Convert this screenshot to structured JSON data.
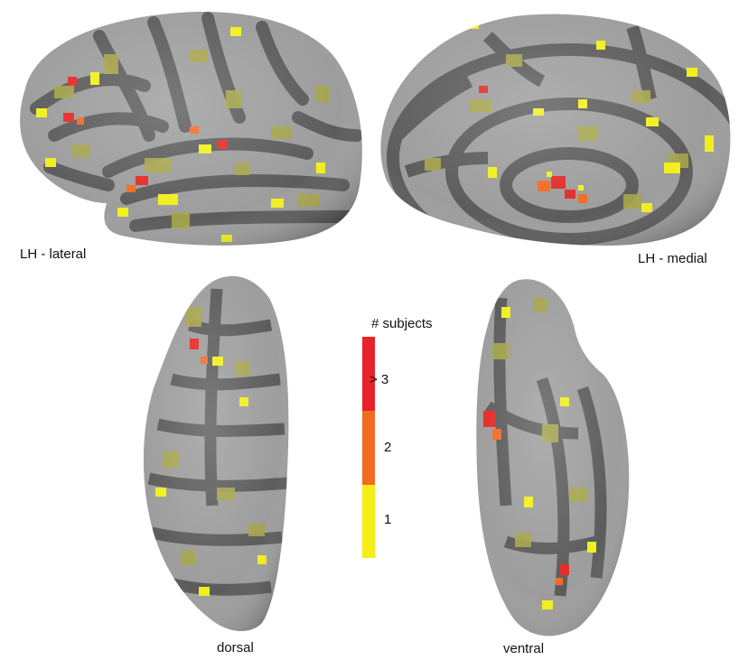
{
  "views": {
    "lateral": "LH - lateral",
    "medial": "LH - medial",
    "dorsal": "dorsal",
    "ventral": "ventral"
  },
  "legend": {
    "title": "# subjects",
    "levels": [
      {
        "label": "> 3",
        "color": "#e8222b"
      },
      {
        "label": "2",
        "color": "#f26b22"
      },
      {
        "label": "1",
        "color": "#f6ee16"
      }
    ]
  },
  "colors": {
    "gyrus": "#9d9d9d",
    "sulcus": "#5c5c5c",
    "yellow_dim": "#a7a64a",
    "yellow": "#f1ef1d",
    "orange": "#f26b22",
    "red": "#e32a26"
  }
}
